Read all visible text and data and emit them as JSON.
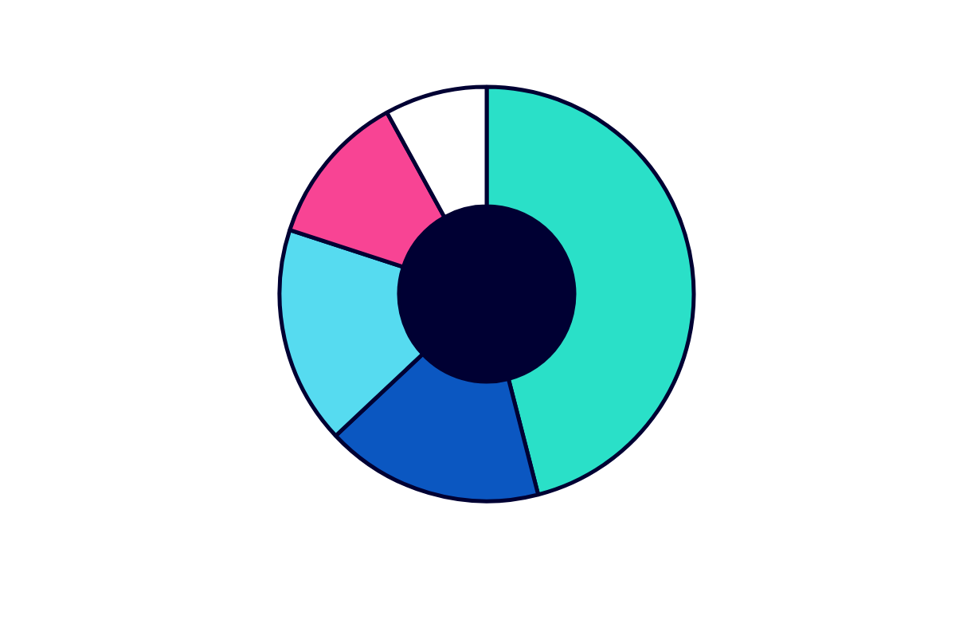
{
  "chart_data": {
    "type": "donut",
    "categories": [
      null,
      null,
      null,
      null,
      null
    ],
    "values": [
      46,
      17,
      17,
      12,
      8
    ],
    "colors": [
      "#2ae0c8",
      "#0b57c1",
      "#56dbf0",
      "#f84494",
      "#ffffff"
    ]
  }
}
